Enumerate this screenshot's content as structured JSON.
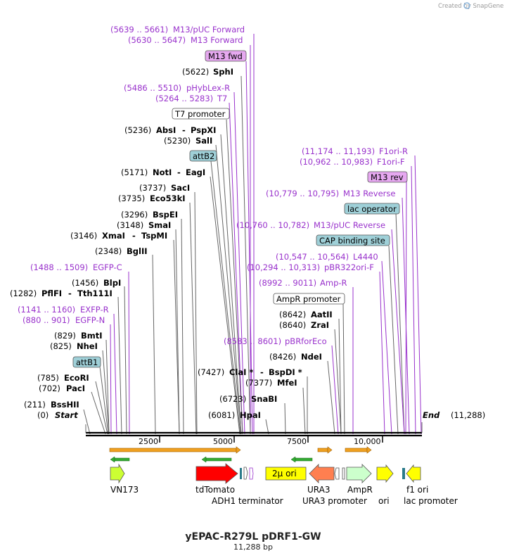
{
  "branding": "Created by SnapGene",
  "title": "yEPAC-R279L pDRF1-GW",
  "subtitle": "11,288 bp",
  "start_label": "Start",
  "start_pos": "(0)",
  "end_label": "End",
  "end_pos": "(11,288)",
  "ticks": [
    "2500",
    "5000",
    "7500",
    "10,000"
  ],
  "feature_labels": {
    "vn173": "VN173",
    "tdtomato": "tdTomato",
    "adh1": "ADH1 terminator",
    "ura3": "URA3",
    "ura3p": "URA3 promoter",
    "ampr": "AmpR",
    "ori": "ori",
    "f1ori": "f1 ori",
    "lacp": "lac promoter",
    "twomu": "2μ ori"
  },
  "boxed": {
    "m13fwd": "M13 fwd",
    "t7prom": "T7 promoter",
    "attb2": "attB2",
    "attb1": "attB1",
    "m13rev": "M13 rev",
    "lacop": "lac operator",
    "cap": "CAP binding site",
    "amprprom": "AmpR promoter"
  },
  "purple_left": {
    "m13pucfwd_pos": "(5639 .. 5661)",
    "m13pucfwd": "M13/pUC Forward",
    "m13fwd_pos": "(5630 .. 5647)",
    "m13fwd": "M13 Forward",
    "phyb_pos": "(5486 .. 5510)",
    "phyb": "pHybLex-R",
    "t7_pos": "(5264 .. 5283)",
    "t7": "T7",
    "egfpc_pos": "(1488 .. 1509)",
    "egfpc": "EGFP-C",
    "exfpr_pos": "(1141 .. 1160)",
    "exfpr": "EXFP-R",
    "egfpn_pos": "(880 .. 901)",
    "egfpn": "EGFP-N"
  },
  "purple_right": {
    "f1r_pos": "(11,174 .. 11,193)",
    "f1r": "F1ori-R",
    "f1f_pos": "(10,962 .. 10,983)",
    "f1f": "F1ori-F",
    "m13r_pos": "(10,779 .. 10,795)",
    "m13r": "M13 Reverse",
    "m13pucrev_pos": "(10,760 .. 10,782)",
    "m13pucrev": "M13/pUC Reverse",
    "l4440_pos": "(10,547 .. 10,564)",
    "l4440": "L4440",
    "pbr_pos": "(10,294 .. 10,313)",
    "pbr": "pBR322ori-F",
    "ampr_pos": "(8992 .. 9011)",
    "ampr": "Amp-R",
    "pbrfor_pos": "(8583 .. 8601)",
    "pbrfor": "pBRforEco"
  },
  "enzymes_left": [
    {
      "pos": "(5622)",
      "name": "SphI"
    },
    {
      "pos": "(5236)",
      "name": "AbsI",
      "name2": "PspXI"
    },
    {
      "pos": "(5230)",
      "name": "SalI"
    },
    {
      "pos": "(5171)",
      "name": "NotI",
      "name2": "EagI"
    },
    {
      "pos": "(3737)",
      "name": "SacI"
    },
    {
      "pos": "(3735)",
      "name": "Eco53kI"
    },
    {
      "pos": "(3296)",
      "name": "BspEI"
    },
    {
      "pos": "(3148)",
      "name": "SmaI"
    },
    {
      "pos": "(3146)",
      "name": "XmaI",
      "name2": "TspMI"
    },
    {
      "pos": "(2348)",
      "name": "BglII"
    },
    {
      "pos": "(1456)",
      "name": "BlpI"
    },
    {
      "pos": "(1282)",
      "name": "PflFI",
      "name2": "Tth111I"
    },
    {
      "pos": "(829)",
      "name": "BmtI"
    },
    {
      "pos": "(825)",
      "name": "NheI"
    },
    {
      "pos": "(785)",
      "name": "EcoRI"
    },
    {
      "pos": "(702)",
      "name": "PacI"
    },
    {
      "pos": "(211)",
      "name": "BssHII"
    }
  ],
  "enzymes_right": [
    {
      "pos": "(8642)",
      "name": "AatII"
    },
    {
      "pos": "(8640)",
      "name": "ZraI"
    },
    {
      "pos": "(8426)",
      "name": "NdeI"
    },
    {
      "pos": "(7427)",
      "name": "ClaI *",
      "name2": "BspDI *"
    },
    {
      "pos": "(7377)",
      "name": "MfeI"
    },
    {
      "pos": "(6723)",
      "name": "SnaBI"
    },
    {
      "pos": "(6081)",
      "name": "HpaI"
    }
  ],
  "colors": {
    "purple": "#9932cc",
    "primer_fill": "#e6a8f0",
    "teal_box": "#9fd0d8",
    "tdtomato": "#ff0000",
    "ura3": "#ff7f50",
    "ampr": "#ccffcc",
    "yellow": "#ffff00",
    "vn173": "#ccff33",
    "orange_bar": "#f0a020",
    "green_arrow": "#33aa33"
  }
}
